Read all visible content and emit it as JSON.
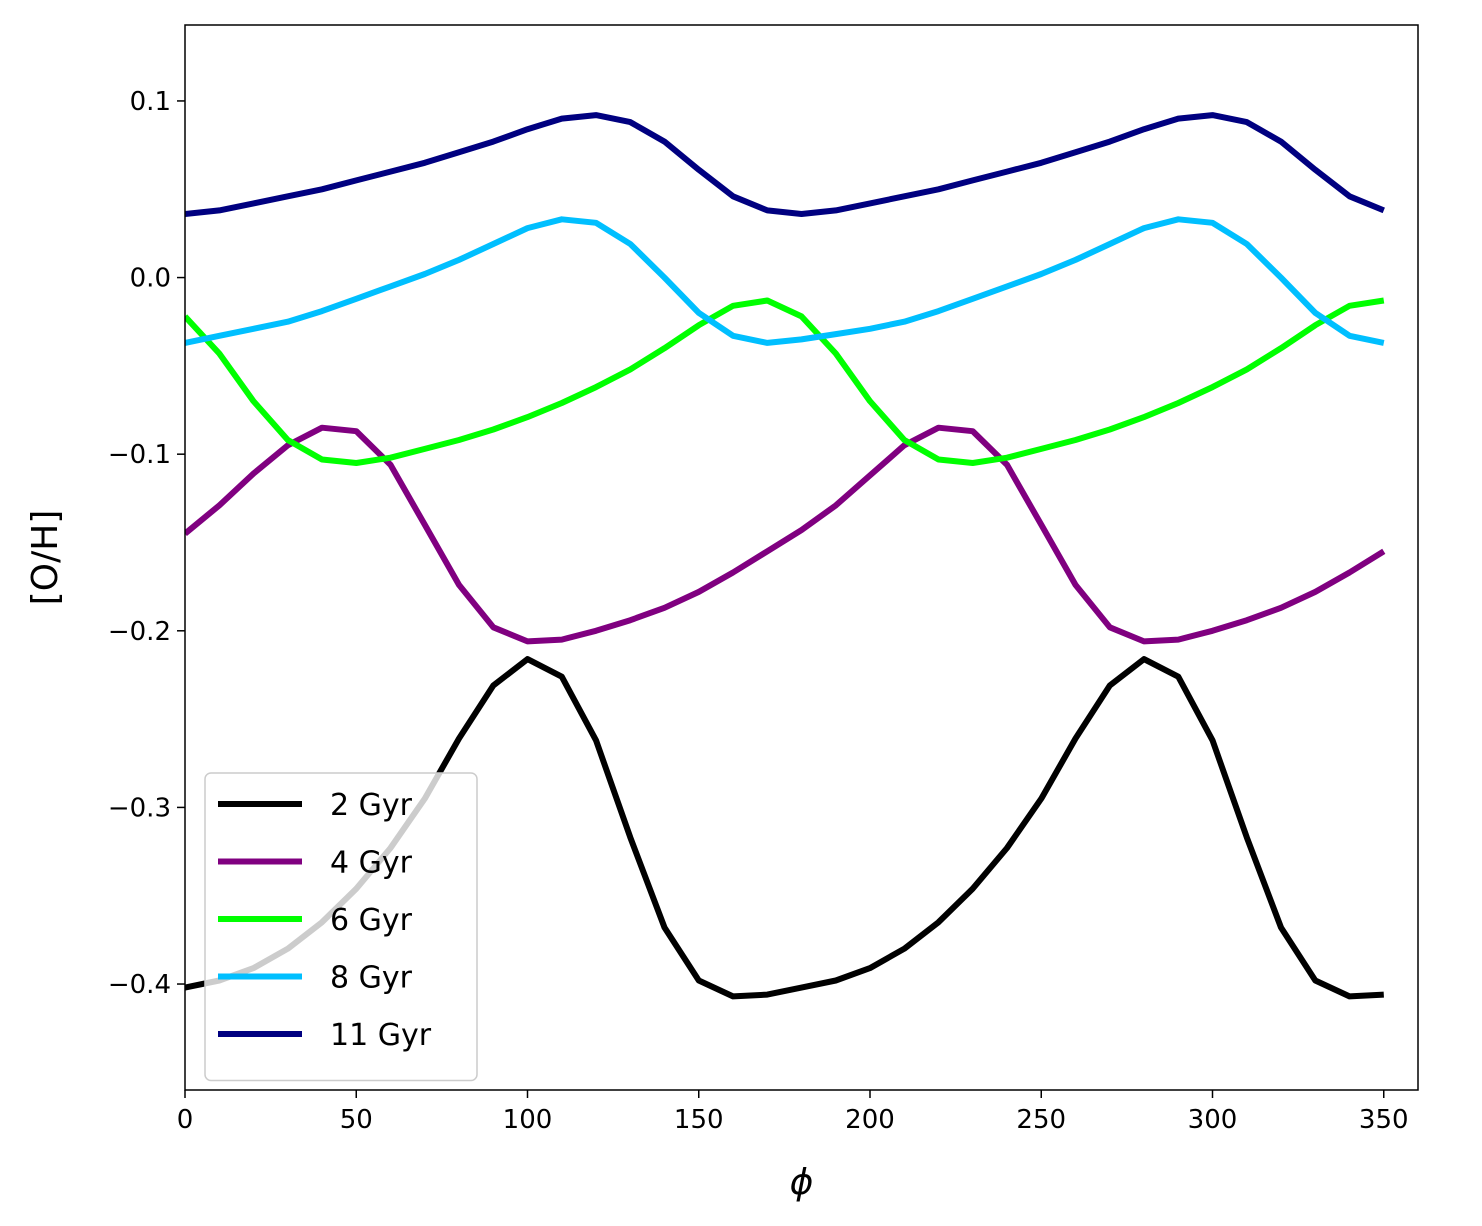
{
  "chart_data": {
    "type": "line",
    "xlabel": "ϕ",
    "ylabel": "[O/H]",
    "xlim": [
      0,
      360
    ],
    "ylim": [
      -0.46,
      0.143
    ],
    "xticks": [
      0,
      50,
      100,
      150,
      200,
      250,
      300,
      350
    ],
    "xtick_labels": [
      "0",
      "50",
      "100",
      "150",
      "200",
      "250",
      "300",
      "350"
    ],
    "yticks": [
      -0.4,
      -0.3,
      -0.2,
      -0.1,
      0.0,
      0.1
    ],
    "ytick_labels": [
      "−0.4",
      "−0.3",
      "−0.2",
      "−0.1",
      "0.0",
      "0.1"
    ],
    "grid": false,
    "legend_position": "lower-left",
    "x": [
      0,
      10,
      20,
      30,
      40,
      50,
      60,
      70,
      80,
      90,
      100,
      110,
      120,
      130,
      140,
      150,
      160,
      170,
      180,
      190,
      200,
      210,
      220,
      230,
      240,
      250,
      260,
      270,
      280,
      290,
      300,
      310,
      320,
      330,
      340,
      350
    ],
    "series": [
      {
        "name": "2 Gyr",
        "color": "#000000",
        "values": [
          -0.402,
          -0.398,
          -0.391,
          -0.38,
          -0.365,
          -0.346,
          -0.323,
          -0.295,
          -0.261,
          -0.231,
          -0.216,
          -0.226,
          -0.262,
          -0.317,
          -0.368,
          -0.398,
          -0.407,
          -0.406,
          -0.402,
          -0.398,
          -0.391,
          -0.38,
          -0.365,
          -0.346,
          -0.323,
          -0.295,
          -0.261,
          -0.231,
          -0.216,
          -0.226,
          -0.262,
          -0.317,
          -0.368,
          -0.398,
          -0.407,
          -0.406
        ]
      },
      {
        "name": "4 Gyr",
        "color": "#800080",
        "values": [
          -0.145,
          -0.129,
          -0.111,
          -0.095,
          -0.085,
          -0.087,
          -0.106,
          -0.14,
          -0.174,
          -0.198,
          -0.206,
          -0.205,
          -0.2,
          -0.194,
          -0.187,
          -0.178,
          -0.167,
          -0.155,
          -0.143,
          -0.129,
          -0.112,
          -0.095,
          -0.085,
          -0.087,
          -0.106,
          -0.14,
          -0.174,
          -0.198,
          -0.206,
          -0.205,
          -0.2,
          -0.194,
          -0.187,
          -0.178,
          -0.167,
          -0.155
        ]
      },
      {
        "name": "6 Gyr",
        "color": "#00ff00",
        "values": [
          -0.022,
          -0.043,
          -0.07,
          -0.092,
          -0.103,
          -0.105,
          -0.102,
          -0.097,
          -0.092,
          -0.086,
          -0.079,
          -0.071,
          -0.062,
          -0.052,
          -0.04,
          -0.027,
          -0.016,
          -0.013,
          -0.022,
          -0.043,
          -0.07,
          -0.092,
          -0.103,
          -0.105,
          -0.102,
          -0.097,
          -0.092,
          -0.086,
          -0.079,
          -0.071,
          -0.062,
          -0.052,
          -0.04,
          -0.027,
          -0.016,
          -0.013
        ]
      },
      {
        "name": "8 Gyr",
        "color": "#00bfff",
        "values": [
          -0.037,
          -0.033,
          -0.029,
          -0.025,
          -0.019,
          -0.012,
          -0.005,
          0.002,
          0.01,
          0.019,
          0.028,
          0.033,
          0.031,
          0.019,
          0.0,
          -0.02,
          -0.033,
          -0.037,
          -0.035,
          -0.032,
          -0.029,
          -0.025,
          -0.019,
          -0.012,
          -0.005,
          0.002,
          0.01,
          0.019,
          0.028,
          0.033,
          0.031,
          0.019,
          0.0,
          -0.02,
          -0.033,
          -0.037
        ]
      },
      {
        "name": "11 Gyr",
        "color": "#000080",
        "values": [
          0.036,
          0.038,
          0.042,
          0.046,
          0.05,
          0.055,
          0.06,
          0.065,
          0.071,
          0.077,
          0.084,
          0.09,
          0.092,
          0.088,
          0.077,
          0.061,
          0.046,
          0.038,
          0.036,
          0.038,
          0.042,
          0.046,
          0.05,
          0.055,
          0.06,
          0.065,
          0.071,
          0.077,
          0.084,
          0.09,
          0.092,
          0.088,
          0.077,
          0.061,
          0.046,
          0.038
        ]
      }
    ]
  }
}
